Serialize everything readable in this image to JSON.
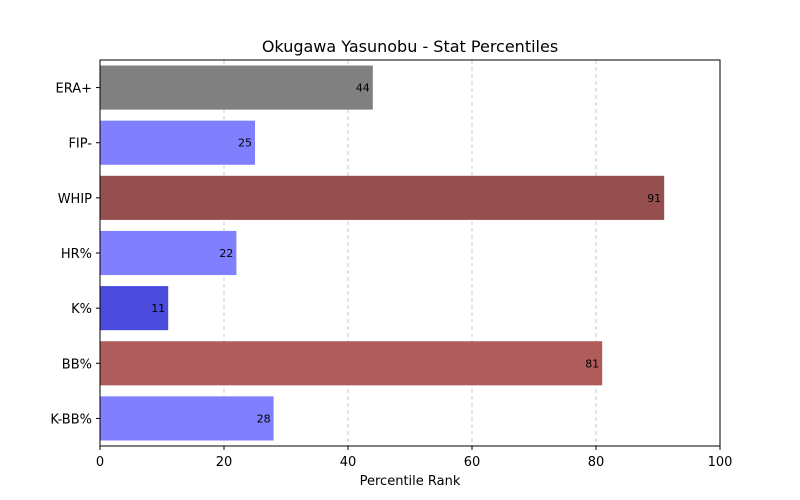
{
  "chart_data": {
    "type": "bar",
    "orientation": "horizontal",
    "title": "Okugawa Yasunobu - Stat Percentiles",
    "xlabel": "Percentile Rank",
    "ylabel": "",
    "xlim": [
      0,
      100
    ],
    "x_ticks": [
      0,
      20,
      40,
      60,
      80,
      100
    ],
    "grid": "x-dashed",
    "categories": [
      "ERA+",
      "FIP-",
      "WHIP",
      "HR%",
      "K%",
      "BB%",
      "K-BB%"
    ],
    "values": [
      44,
      25,
      91,
      22,
      11,
      81,
      28
    ],
    "colors": [
      "#808080",
      "#8080ff",
      "#954f4f",
      "#8080ff",
      "#4b4bdd",
      "#b05c5c",
      "#8080ff"
    ]
  }
}
